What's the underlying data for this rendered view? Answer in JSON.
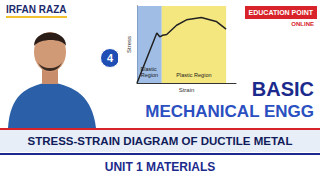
{
  "header": {
    "presenter": "IRFAN RAZA",
    "episode": 4,
    "logo": {
      "line1": "EDUCATION POINT",
      "line2": "ONLINE"
    }
  },
  "title": {
    "line1": "BASIC",
    "line2": "MECHANICAL ENGG"
  },
  "banner": {
    "line1": "STRESS-STRAIN DIAGRAM OF DUCTILE METAL",
    "line2": "UNIT 1 MATERIALS"
  },
  "chart_data": {
    "type": "line",
    "x_label": "Strain",
    "y_label": "Stress",
    "x": [
      0,
      2,
      2.3,
      2.6,
      3,
      4,
      5,
      6.5,
      8,
      9
    ],
    "values": [
      0,
      6.5,
      6.0,
      6.2,
      6.3,
      7.5,
      8.2,
      8.5,
      8.0,
      7.0
    ],
    "color": "#222222",
    "xlim": [
      0,
      10
    ],
    "ylim": [
      0,
      10
    ],
    "tick_labels": false,
    "grid": false,
    "regions": [
      {
        "label": "Elastic Region",
        "from": 0,
        "to": 2.5,
        "color": "#8fb3e0"
      },
      {
        "label": "Plastic Region",
        "from": 2.5,
        "to": 9,
        "color": "#f3e36a"
      }
    ]
  }
}
